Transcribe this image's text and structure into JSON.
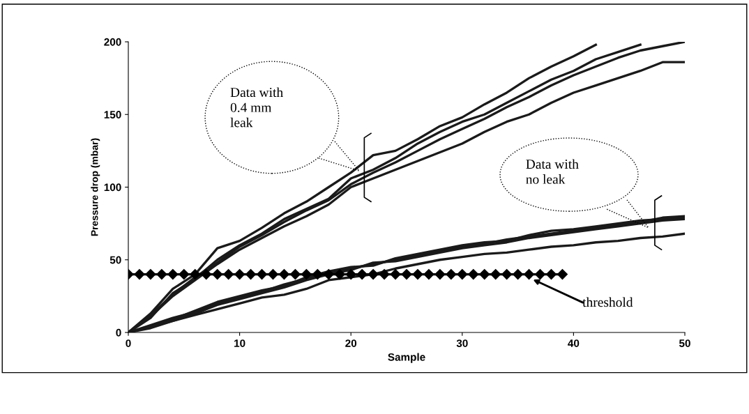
{
  "chart_data": {
    "type": "line",
    "xlabel": "Sample",
    "ylabel": "Pressure drop (mbar)",
    "xlim": [
      0,
      50
    ],
    "ylim": [
      0,
      200
    ],
    "xticks": [
      0,
      10,
      20,
      30,
      40,
      50
    ],
    "yticks": [
      0,
      50,
      100,
      150,
      200
    ],
    "grid": false,
    "legend": false,
    "marker": "none",
    "line_style": "solid",
    "x": [
      0,
      2,
      4,
      6,
      8,
      10,
      12,
      14,
      16,
      18,
      20,
      22,
      24,
      26,
      28,
      30,
      32,
      34,
      36,
      38,
      40,
      42,
      44,
      46,
      48,
      50
    ],
    "series": [
      {
        "color": "#1a1a1a",
        "values": [
          0,
          13,
          30,
          40,
          58,
          63,
          72,
          82,
          90,
          100,
          110,
          122,
          125,
          133,
          142,
          148,
          157,
          165,
          175,
          183,
          190,
          198,
          null,
          null,
          null,
          null
        ]
      },
      {
        "color": "#1a1a1a",
        "values": [
          0,
          10,
          27,
          37,
          50,
          60,
          68,
          78,
          85,
          92,
          106,
          112,
          120,
          130,
          138,
          145,
          150,
          158,
          166,
          174,
          180,
          188,
          193,
          198,
          null,
          null
        ]
      },
      {
        "color": "#1a1a1a",
        "values": [
          0,
          12,
          26,
          38,
          48,
          59,
          67,
          76,
          84,
          91,
          102,
          110,
          117,
          125,
          133,
          140,
          147,
          155,
          162,
          170,
          177,
          183,
          189,
          194,
          197,
          200
        ]
      },
      {
        "color": "#1a1a1a",
        "values": [
          0,
          11,
          25,
          36,
          47,
          57,
          65,
          73,
          80,
          88,
          100,
          106,
          112,
          118,
          124,
          130,
          138,
          145,
          150,
          158,
          165,
          170,
          175,
          180,
          186,
          186
        ]
      },
      {
        "color": "#1a1a1a",
        "values": [
          0,
          5,
          10,
          14,
          20,
          24,
          28,
          33,
          37,
          41,
          44,
          47,
          50,
          53,
          56,
          59,
          61,
          64,
          66,
          68,
          70,
          72,
          74,
          76,
          79,
          80
        ]
      },
      {
        "color": "#1a1a1a",
        "values": [
          0,
          4,
          9,
          15,
          21,
          25,
          29,
          32,
          38,
          42,
          45,
          46,
          51,
          54,
          57,
          60,
          62,
          63,
          67,
          70,
          71,
          73,
          75,
          77,
          78,
          79
        ]
      },
      {
        "color": "#1a1a1a",
        "values": [
          0,
          3,
          8,
          13,
          19,
          23,
          27,
          31,
          36,
          40,
          43,
          48,
          49,
          52,
          55,
          58,
          60,
          62,
          65,
          67,
          69,
          71,
          73,
          75,
          77,
          78
        ]
      },
      {
        "color": "#1a1a1a",
        "values": [
          0,
          4,
          8,
          12,
          16,
          20,
          24,
          26,
          30,
          36,
          38,
          40,
          44,
          47,
          50,
          52,
          54,
          55,
          57,
          59,
          60,
          62,
          63,
          65,
          66,
          68
        ]
      },
      {
        "color": "#000000",
        "marker": "diamond",
        "x": [
          0,
          1,
          2,
          3,
          4,
          5,
          6,
          7,
          8,
          9,
          10,
          11,
          12,
          13,
          14,
          15,
          16,
          17,
          18,
          19,
          20,
          21,
          22,
          23,
          24,
          25,
          26,
          27,
          28,
          29,
          30,
          31,
          32,
          33,
          34,
          35,
          36,
          37,
          38,
          39
        ],
        "values": [
          40,
          40,
          40,
          40,
          40,
          40,
          40,
          40,
          40,
          40,
          40,
          40,
          40,
          40,
          40,
          40,
          40,
          40,
          40,
          40,
          40,
          40,
          40,
          40,
          40,
          40,
          40,
          40,
          40,
          40,
          40,
          40,
          40,
          40,
          40,
          40,
          40,
          40,
          40,
          40
        ]
      }
    ],
    "annotations": [
      "Data with\n0.4 mm\nleak",
      "Data with\nno leak",
      "threshold"
    ]
  }
}
